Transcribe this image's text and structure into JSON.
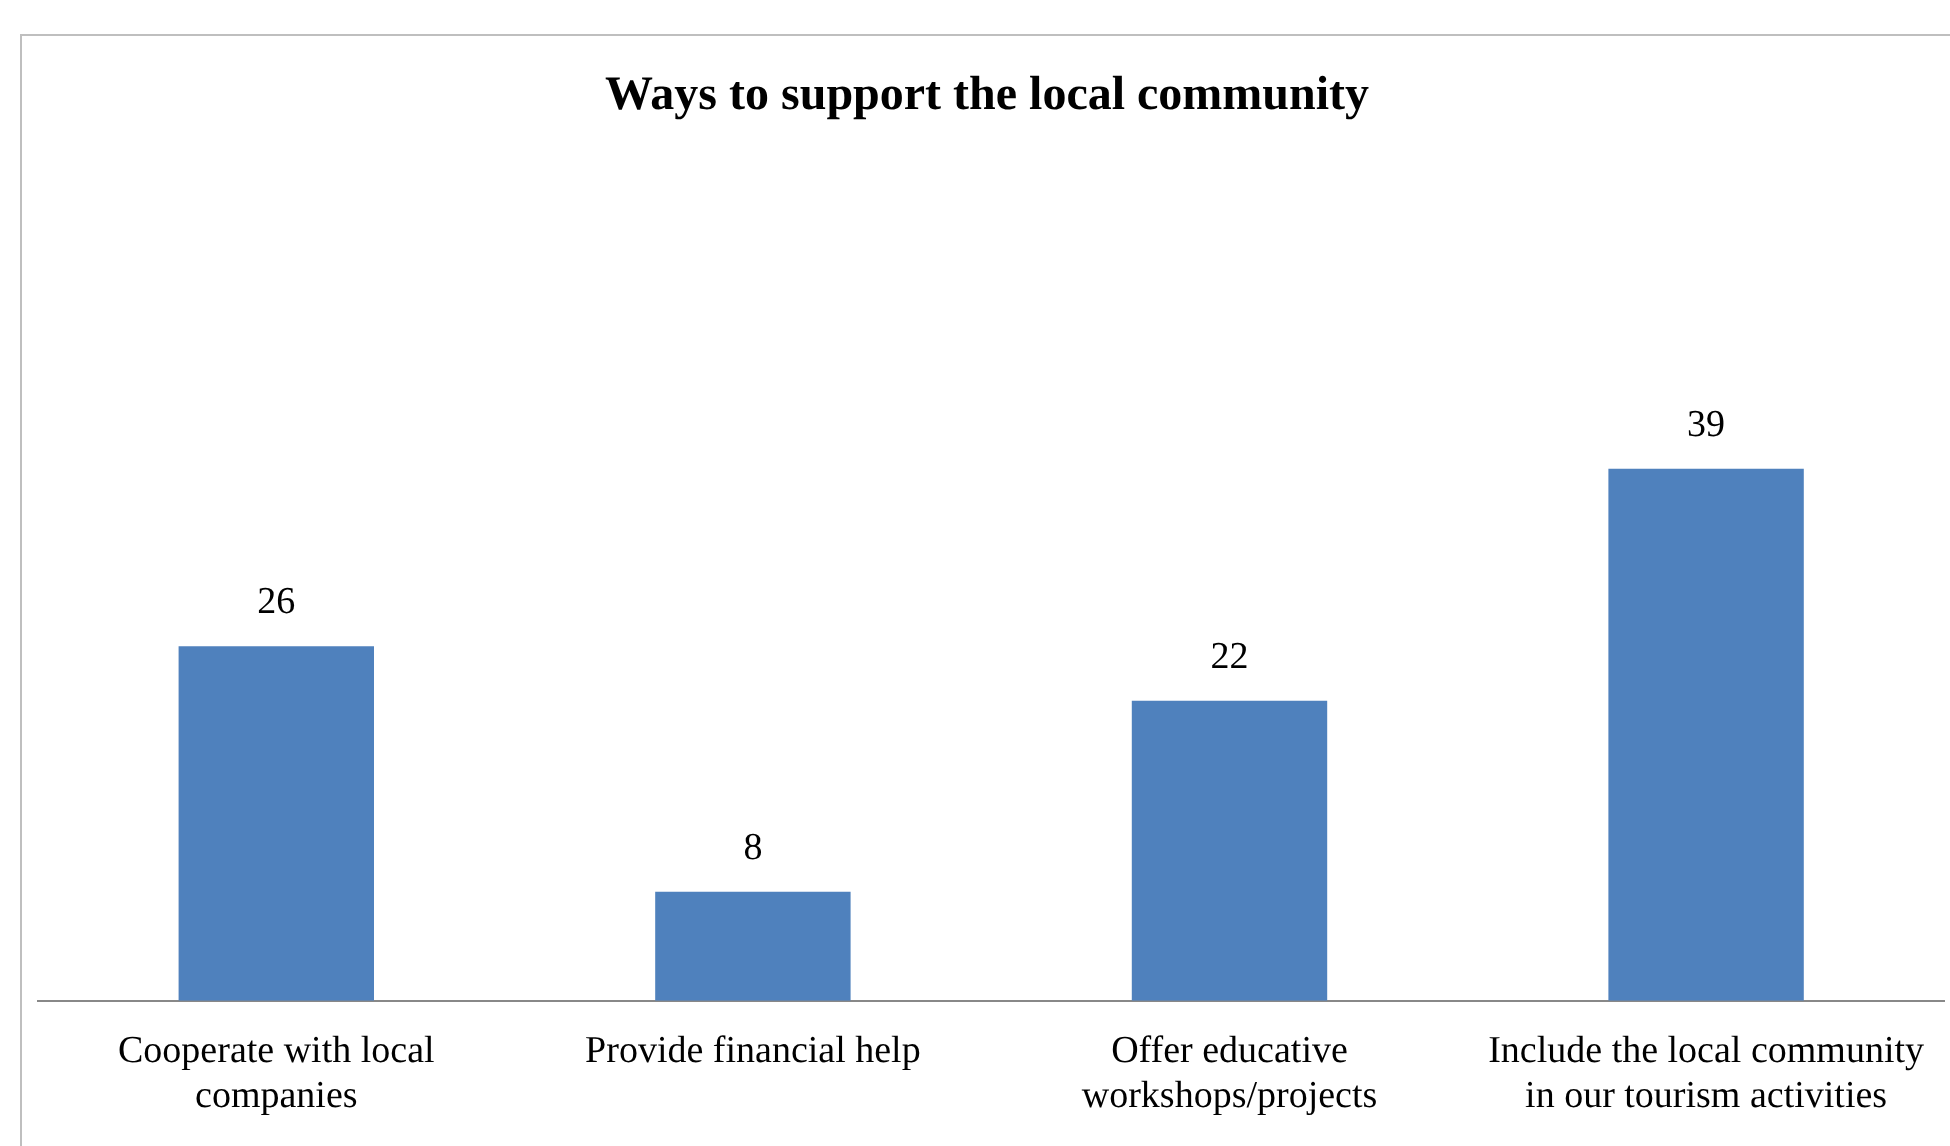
{
  "chart_data": {
    "type": "bar",
    "title": "Ways to support the local community",
    "categories": [
      "Cooperate with local companies",
      "Provide financial help",
      "Offer educative workshops/projects",
      "Include the local community in our tourism activities"
    ],
    "values": [
      26,
      8,
      22,
      39
    ],
    "color": "#4f81bd",
    "data_labels": true,
    "relative": false,
    "grid": false,
    "legend": false
  }
}
